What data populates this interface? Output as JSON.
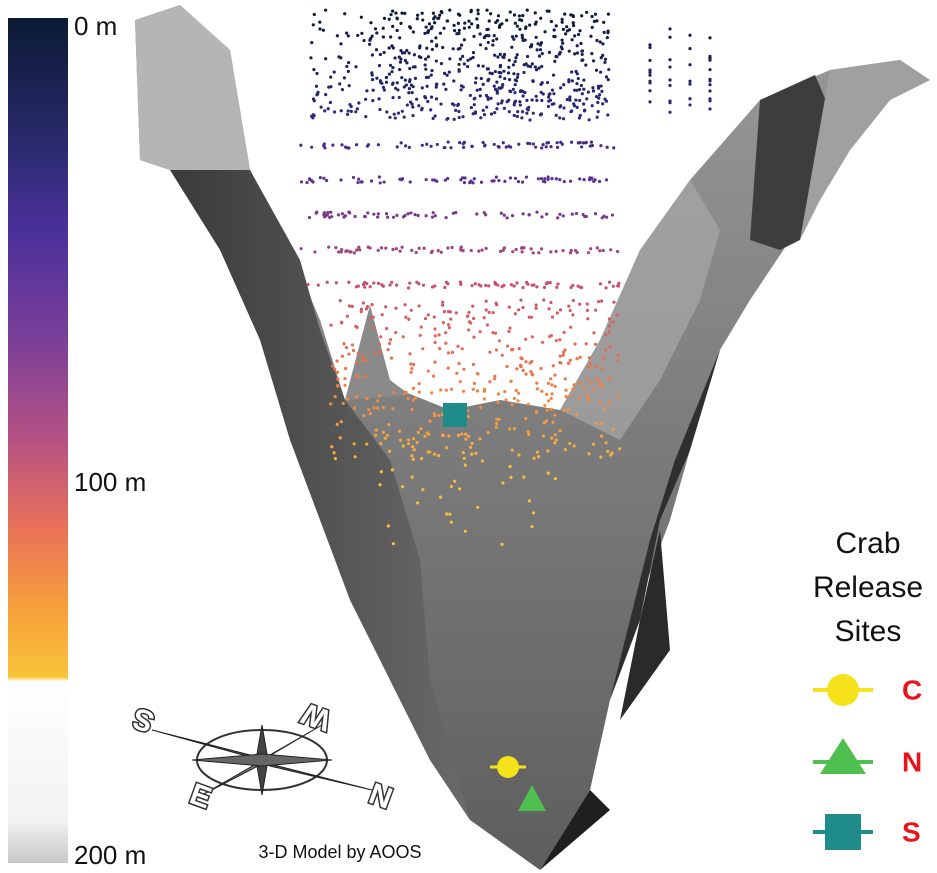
{
  "color_scale": {
    "labels": [
      "0 m",
      "100 m",
      "200 m"
    ]
  },
  "credit": "3-D Model by AOOS",
  "legend": {
    "title": [
      "Crab",
      "Release",
      "Sites"
    ],
    "items": [
      {
        "label": "C"
      },
      {
        "label": "N"
      },
      {
        "label": "S"
      }
    ]
  },
  "compass": {
    "labels": [
      "S",
      "W",
      "E",
      "N"
    ]
  }
}
